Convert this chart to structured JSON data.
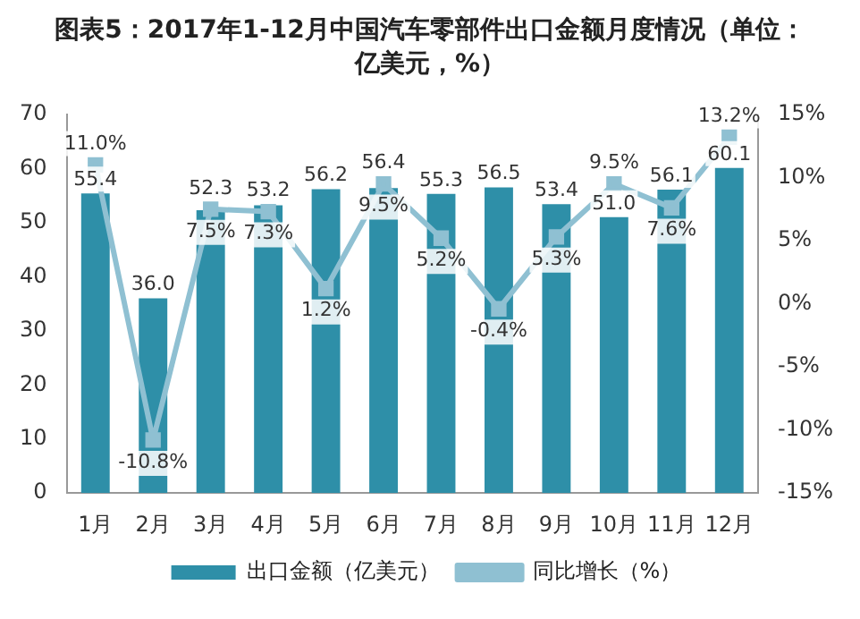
{
  "chart_data": {
    "type": "bar",
    "title": "图表5：2017年1-12月中国汽车零部件出口金额月度情况（单位：亿美元，%）",
    "categories": [
      "1月",
      "2月",
      "3月",
      "4月",
      "5月",
      "6月",
      "7月",
      "8月",
      "9月",
      "10月",
      "11月",
      "12月"
    ],
    "series": [
      {
        "name": "出口金额（亿美元）",
        "type": "bar",
        "color": "#2e8fa8",
        "values": [
          55.4,
          36.0,
          52.3,
          53.2,
          56.2,
          56.4,
          55.3,
          56.5,
          53.4,
          51.0,
          56.1,
          60.1
        ],
        "value_labels": [
          "55.4",
          "36.0",
          "52.3",
          "53.2",
          "56.2",
          "56.4",
          "55.3",
          "56.5",
          "53.4",
          "51.0",
          "56.1",
          "60.1"
        ]
      },
      {
        "name": "同比增长（%）",
        "type": "line",
        "axis": "y2",
        "color": "#8fc0d2",
        "values": [
          11.0,
          -10.8,
          7.5,
          7.3,
          1.2,
          9.5,
          5.2,
          -0.4,
          5.3,
          9.5,
          7.6,
          13.2
        ],
        "value_labels": [
          "11.0%",
          "-10.8%",
          "7.5%",
          "7.3%",
          "1.2%",
          "9.5%",
          "5.2%",
          "-0.4%",
          "5.3%",
          "9.5%",
          "7.6%",
          "13.2%"
        ]
      }
    ],
    "ylim": [
      0,
      70
    ],
    "yticks": [
      0,
      10,
      20,
      30,
      40,
      50,
      60,
      70
    ],
    "y2lim": [
      -15,
      15
    ],
    "y2ticks": [
      {
        "value": -15,
        "label": "-15%"
      },
      {
        "value": -10,
        "label": "-10%"
      },
      {
        "value": -5,
        "label": "-5%"
      },
      {
        "value": 0,
        "label": "0%"
      },
      {
        "value": 5,
        "label": "5%"
      },
      {
        "value": 10,
        "label": "10%"
      },
      {
        "value": 15,
        "label": "15%"
      }
    ],
    "grid": false,
    "legend": "bottom",
    "marker": "square",
    "line_style": "solid"
  }
}
